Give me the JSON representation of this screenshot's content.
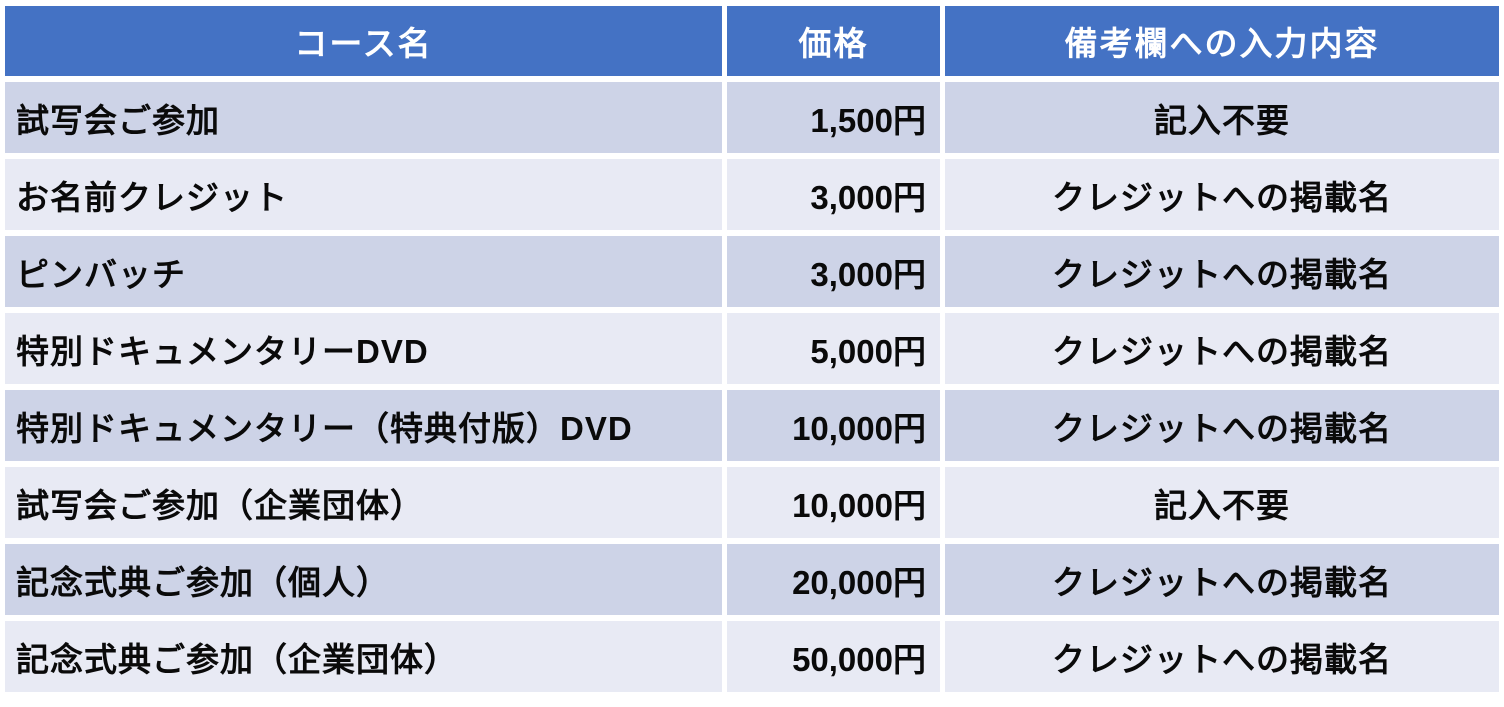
{
  "colors": {
    "header-bg": "#4472C4",
    "header-text": "#FFFFFF",
    "row-odd": "#CDD3E7",
    "row-even": "#E8EAF4",
    "body-text": "#0A0A0A",
    "page-bg": "#FFFFFF"
  },
  "table": {
    "columns": [
      "コース名",
      "価格",
      "備考欄への入力内容"
    ],
    "rows": [
      {
        "course": "試写会ご参加",
        "price": "1,500円",
        "note": "記入不要"
      },
      {
        "course": "お名前クレジット",
        "price": "3,000円",
        "note": "クレジットへの掲載名"
      },
      {
        "course": "ピンバッチ",
        "price": "3,000円",
        "note": "クレジットへの掲載名"
      },
      {
        "course": "特別ドキュメンタリーDVD",
        "price": "5,000円",
        "note": "クレジットへの掲載名"
      },
      {
        "course": "特別ドキュメンタリー（特典付版）DVD",
        "price": "10,000円",
        "note": "クレジットへの掲載名"
      },
      {
        "course": "試写会ご参加（企業団体）",
        "price": "10,000円",
        "note": "記入不要"
      },
      {
        "course": "記念式典ご参加（個人）",
        "price": "20,000円",
        "note": "クレジットへの掲載名"
      },
      {
        "course": "記念式典ご参加（企業団体）",
        "price": "50,000円",
        "note": "クレジットへの掲載名"
      }
    ]
  },
  "chart_data": {
    "type": "table",
    "title": "",
    "columns": [
      "コース名",
      "価格",
      "備考欄への入力内容"
    ],
    "rows": [
      [
        "試写会ご参加",
        "1,500円",
        "記入不要"
      ],
      [
        "お名前クレジット",
        "3,000円",
        "クレジットへの掲載名"
      ],
      [
        "ピンバッチ",
        "3,000円",
        "クレジットへの掲載名"
      ],
      [
        "特別ドキュメンタリーDVD",
        "5,000円",
        "クレジットへの掲載名"
      ],
      [
        "特別ドキュメンタリー（特典付版）DVD",
        "10,000円",
        "クレジットへの掲載名"
      ],
      [
        "試写会ご参加（企業団体）",
        "10,000円",
        "記入不要"
      ],
      [
        "記念式典ご参加（個人）",
        "20,000円",
        "クレジットへの掲載名"
      ],
      [
        "記念式典ご参加（企業団体）",
        "50,000円",
        "クレジットへの掲載名"
      ]
    ],
    "prices_numeric_yen": [
      1500,
      3000,
      3000,
      5000,
      10000,
      10000,
      20000,
      50000
    ],
    "layout": {
      "header_style": "solid blue band, white bold centered text",
      "row_banding": [
        "odd rows #CDD3E7",
        "even rows #E8EAF4"
      ],
      "column_alignment": [
        "left",
        "right",
        "center"
      ],
      "grid": "white gaps between cells (border-spacing)"
    }
  }
}
